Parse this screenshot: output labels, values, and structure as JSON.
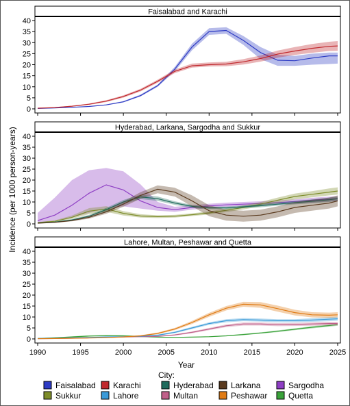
{
  "chart_data": {
    "type": "line",
    "xlabel": "Year",
    "ylabel": "Incidence (per 1000 person-years)",
    "xlim": [
      1990,
      2025
    ],
    "xticks": [
      1990,
      1995,
      2000,
      2005,
      2010,
      2015,
      2020,
      2025
    ],
    "ylim": [
      0,
      40
    ],
    "yticks": [
      0,
      5,
      10,
      15,
      20,
      25,
      30,
      35,
      40
    ],
    "legend_title": "City:",
    "legend_position": "bottom",
    "grid": false,
    "colors": {
      "Faisalabad": "#2d3bc4",
      "Karachi": "#c0282d",
      "Hyderabad": "#1e6b5c",
      "Larkana": "#5a3a1e",
      "Sargodha": "#8e3ec4",
      "Sukkur": "#7d8c2a",
      "Lahore": "#3a9ad8",
      "Multan": "#c0608a",
      "Peshawar": "#e07b14",
      "Quetta": "#3aa23a"
    },
    "legend": [
      "Faisalabad",
      "Karachi",
      "Hyderabad",
      "Larkana",
      "Sargodha",
      "Sukkur",
      "Lahore",
      "Multan",
      "Peshawar",
      "Quetta"
    ],
    "x": [
      1990,
      1992,
      1994,
      1996,
      1998,
      2000,
      2002,
      2004,
      2006,
      2008,
      2010,
      2012,
      2014,
      2016,
      2018,
      2020,
      2022,
      2024,
      2025
    ],
    "panels": [
      {
        "title": "Faisalabad and Karachi",
        "series": [
          {
            "name": "Faisalabad",
            "values": [
              0.2,
              0.4,
              0.7,
              1.1,
              1.8,
              3.2,
              6,
              10.5,
              18,
              28,
              35,
              35.5,
              31,
              25.5,
              22,
              21.8,
              23,
              24,
              24
            ],
            "lower": [
              0.1,
              0.3,
              0.6,
              1.0,
              1.6,
              2.9,
              5.6,
              10,
              17,
              26.5,
              33.5,
              34,
              29,
              22.5,
              19.5,
              19.5,
              20,
              20.3,
              20.5
            ],
            "upper": [
              0.3,
              0.5,
              0.8,
              1.2,
              2.0,
              3.5,
              6.5,
              11,
              19,
              29.5,
              36.5,
              37,
              33,
              28,
              24.5,
              24,
              25,
              25.5,
              25.5
            ]
          },
          {
            "name": "Karachi",
            "values": [
              0.3,
              0.6,
              1.2,
              2.1,
              3.5,
              5.6,
              8.5,
              12.5,
              17,
              19.5,
              20,
              20.3,
              21.3,
              22.8,
              24.8,
              26.2,
              27.4,
              28.3,
              28.5
            ],
            "lower": [
              0.2,
              0.5,
              1.0,
              1.8,
              3.1,
              5.1,
              7.9,
              11.8,
              16.2,
              18.7,
              19.2,
              19.3,
              20.1,
              21.4,
              23.2,
              24.4,
              25.4,
              26.2,
              26.3
            ],
            "upper": [
              0.4,
              0.8,
              1.4,
              2.4,
              3.9,
              6.1,
              9.1,
              13.2,
              17.8,
              20.5,
              21,
              21.3,
              22.5,
              24.2,
              26.4,
              28.0,
              29.4,
              30.4,
              30.7
            ]
          }
        ]
      },
      {
        "title": "Hyderabad, Larkana, Sargodha and Sukkur",
        "series": [
          {
            "name": "Sargodha",
            "values": [
              1.5,
              4,
              8.5,
              14,
              17.8,
              15.5,
              10.5,
              7.5,
              6.5,
              7.5,
              8.2,
              8.7,
              9,
              9.3,
              9.7,
              10.2,
              10.8,
              11.3,
              11.5
            ],
            "lower": [
              0.5,
              1.5,
              3,
              5,
              7,
              8,
              7,
              6,
              5.5,
              6.5,
              7.3,
              7.8,
              8.1,
              8.4,
              8.8,
              9.2,
              9.7,
              10.2,
              10.4
            ],
            "upper": [
              5,
              12,
              20,
              24.5,
              25.5,
              24,
              18,
              10,
              7.8,
              8.5,
              9.2,
              9.7,
              10,
              10.3,
              10.7,
              11.2,
              11.9,
              12.4,
              12.6
            ]
          },
          {
            "name": "Sukkur",
            "values": [
              0.6,
              1.2,
              3,
              5.8,
              6.8,
              4.8,
              3.6,
              3.3,
              3.5,
              4.2,
              5,
              6.2,
              7.5,
              9,
              10.8,
              12.5,
              13.5,
              14.5,
              15
            ],
            "lower": [
              0.4,
              0.9,
              2.3,
              4.5,
              5.5,
              3.8,
              2.9,
              2.7,
              2.9,
              3.6,
              4.3,
              5.4,
              6.6,
              8.0,
              9.6,
              11.2,
              12.1,
              13,
              13.4
            ],
            "upper": [
              0.8,
              1.6,
              3.8,
              7.2,
              8.1,
              5.8,
              4.4,
              3.9,
              4.1,
              4.8,
              5.7,
              7.0,
              8.4,
              10,
              12,
              13.8,
              14.9,
              16.2,
              16.7
            ]
          },
          {
            "name": "Hyderabad",
            "values": [
              0.4,
              0.8,
              1.8,
              3.5,
              6.5,
              10,
              12.3,
              11.5,
              9.5,
              8,
              7.3,
              7.3,
              7.8,
              8.3,
              9,
              9.7,
              10.3,
              11,
              11.5
            ],
            "lower": [
              0.3,
              0.6,
              1.4,
              2.9,
              5.7,
              9.1,
              11.3,
              10.5,
              8.7,
              7.3,
              6.7,
              6.7,
              7.2,
              7.6,
              8.3,
              8.9,
              9.4,
              10,
              10.5
            ],
            "upper": [
              0.5,
              1.0,
              2.2,
              4.1,
              7.3,
              10.9,
              13.3,
              12.5,
              10.3,
              8.7,
              7.9,
              7.9,
              8.4,
              9.0,
              9.7,
              10.5,
              11.2,
              12,
              12.5
            ]
          },
          {
            "name": "Larkana",
            "values": [
              0.3,
              0.7,
              1.5,
              3,
              5.5,
              9,
              13,
              15.8,
              14.5,
              10.5,
              6,
              4,
              3.5,
              4,
              5.5,
              7.5,
              8.5,
              9.5,
              10.5
            ],
            "lower": [
              0.2,
              0.5,
              1.2,
              2.4,
              4.6,
              7.8,
              11.5,
              14,
              12.5,
              8,
              3.5,
              1.5,
              1,
              1.5,
              3,
              5,
              6,
              7,
              8
            ],
            "upper": [
              0.4,
              0.9,
              1.8,
              3.6,
              6.4,
              10.2,
              14.5,
              17.6,
              16.5,
              13,
              8.5,
              6.5,
              6,
              6.5,
              8,
              10,
              11,
              12,
              13
            ]
          }
        ]
      },
      {
        "title": "Lahore, Multan, Peshawar and Quetta",
        "series": [
          {
            "name": "Quetta",
            "values": [
              0.2,
              0.5,
              0.9,
              1.3,
              1.5,
              1.4,
              1.1,
              0.8,
              0.7,
              0.8,
              1.0,
              1.4,
              2.0,
              2.7,
              3.5,
              4.4,
              5.3,
              6.1,
              6.5
            ],
            "lower": [
              0.1,
              0.3,
              0.6,
              1.0,
              1.2,
              1.1,
              0.9,
              0.6,
              0.5,
              0.6,
              0.8,
              1.2,
              1.7,
              2.4,
              3.1,
              4.0,
              4.8,
              5.6,
              6
            ],
            "upper": [
              0.3,
              0.7,
              1.2,
              1.6,
              1.8,
              1.7,
              1.4,
              1.0,
              0.9,
              1.0,
              1.2,
              1.6,
              2.3,
              3.0,
              3.9,
              4.8,
              5.8,
              6.6,
              7
            ]
          },
          {
            "name": "Multan",
            "values": [
              0.1,
              0.2,
              0.3,
              0.5,
              0.7,
              0.9,
              1.0,
              1.2,
              1.8,
              3,
              4.5,
              6,
              6.8,
              6.8,
              6.5,
              6.6,
              6.8,
              7,
              7
            ],
            "lower": [
              0.05,
              0.1,
              0.2,
              0.4,
              0.5,
              0.7,
              0.8,
              1.0,
              1.5,
              2.6,
              4.0,
              5.4,
              6.1,
              6.1,
              5.8,
              5.9,
              6.0,
              6.2,
              6.2
            ],
            "upper": [
              0.2,
              0.3,
              0.4,
              0.6,
              0.9,
              1.1,
              1.2,
              1.4,
              2.1,
              3.4,
              5.0,
              6.6,
              7.5,
              7.5,
              7.2,
              7.3,
              7.6,
              7.8,
              7.8
            ]
          },
          {
            "name": "Lahore",
            "values": [
              0.2,
              0.3,
              0.5,
              0.7,
              0.9,
              1.0,
              1.2,
              1.7,
              3,
              5,
              7,
              8.3,
              8.8,
              8.6,
              8.3,
              8.3,
              8.6,
              9,
              9.2
            ],
            "lower": [
              0.1,
              0.2,
              0.4,
              0.6,
              0.7,
              0.8,
              1.0,
              1.4,
              2.6,
              4.5,
              6.4,
              7.6,
              8.1,
              7.9,
              7.6,
              7.6,
              7.8,
              8.1,
              8.3
            ],
            "upper": [
              0.3,
              0.4,
              0.6,
              0.8,
              1.1,
              1.2,
              1.4,
              2.0,
              3.4,
              5.5,
              7.6,
              9.0,
              9.5,
              9.3,
              9.0,
              9.0,
              9.4,
              9.9,
              10.1
            ]
          },
          {
            "name": "Peshawar",
            "values": [
              0.1,
              0.2,
              0.3,
              0.4,
              0.6,
              0.9,
              1.4,
              2.5,
              4.5,
              7.5,
              11,
              14,
              15.8,
              15.5,
              13.8,
              12,
              11,
              10.8,
              11
            ],
            "lower": [
              0.05,
              0.1,
              0.2,
              0.3,
              0.5,
              0.7,
              1.1,
              2.1,
              4.0,
              6.8,
              10.1,
              13.0,
              14.7,
              14.2,
              12.4,
              10.7,
              9.8,
              9.6,
              9.8
            ],
            "upper": [
              0.2,
              0.3,
              0.4,
              0.5,
              0.7,
              1.1,
              1.7,
              2.9,
              5.0,
              8.2,
              11.9,
              15.0,
              16.9,
              16.8,
              15.2,
              13.3,
              12.2,
              12.0,
              12.2
            ]
          }
        ]
      }
    ]
  }
}
